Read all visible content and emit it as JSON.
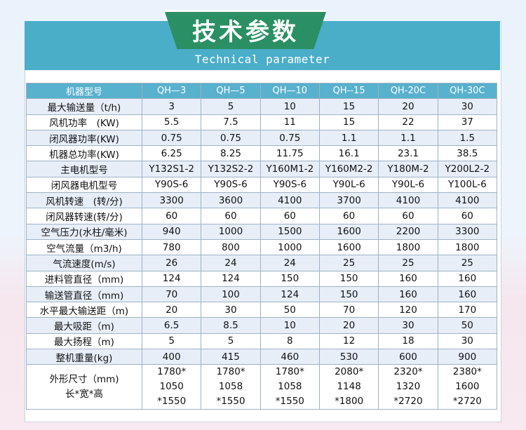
{
  "title": "技术参数",
  "subtitle": "Technical parameter",
  "table": {
    "header_label": "机器型号",
    "models": [
      "QH—3",
      "QH—5",
      "QH—10",
      "QH--15",
      "QH-20C",
      "QH-30C"
    ],
    "rows": [
      {
        "label": "最大输送量（t/h)",
        "values": [
          "3",
          "5",
          "10",
          "15",
          "20",
          "30"
        ]
      },
      {
        "label": "风机功率　(KW)",
        "values": [
          "5.5",
          "7.5",
          "11",
          "15",
          "22",
          "37"
        ]
      },
      {
        "label": "闭风器功率(KW)",
        "values": [
          "0.75",
          "0.75",
          "0.75",
          "1.1",
          "1.1",
          "1.5"
        ]
      },
      {
        "label": "机器总功率(KW)",
        "values": [
          "6.25",
          "8.25",
          "11.75",
          "16.1",
          "23.1",
          "38.5"
        ]
      },
      {
        "label": "主电机型号",
        "values": [
          "Y132S1-2",
          "Y132S2-2",
          "Y160M1-2",
          "Y160M2-2",
          "Y180M-2",
          "Y200L2-2"
        ]
      },
      {
        "label": "闭风器电机型号",
        "values": [
          "Y90S-6",
          "Y90S-6",
          "Y90S-6",
          "Y90L-6",
          "Y90L-6",
          "Y100L-6"
        ]
      },
      {
        "label": "风机转速　(转/分)",
        "values": [
          "3300",
          "3600",
          "4100",
          "3700",
          "4100",
          "4100"
        ]
      },
      {
        "label": "闭风器转速(转/分)",
        "values": [
          "60",
          "60",
          "60",
          "60",
          "60",
          "60"
        ]
      },
      {
        "label": "空气压力(水柱/毫米)",
        "values": [
          "940",
          "1000",
          "1500",
          "1600",
          "2200",
          "3300"
        ]
      },
      {
        "label": "空气流量（m3/h)",
        "values": [
          "780",
          "800",
          "1000",
          "1600",
          "1800",
          "1800"
        ]
      },
      {
        "label": "气流速度(m/s)",
        "values": [
          "26",
          "24",
          "24",
          "25",
          "25",
          "25"
        ]
      },
      {
        "label": "进料管直径（mm)",
        "values": [
          "124",
          "124",
          "150",
          "150",
          "160",
          "160"
        ]
      },
      {
        "label": "输送管直径（mm)",
        "values": [
          "70",
          "100",
          "124",
          "150",
          "160",
          "160"
        ]
      },
      {
        "label": "水平最大输送距（m)",
        "values": [
          "20",
          "30",
          "50",
          "70",
          "120",
          "170"
        ]
      },
      {
        "label": "最大吸距（m)",
        "values": [
          "6.5",
          "8.5",
          "10",
          "20",
          "30",
          "50"
        ]
      },
      {
        "label": "最大扬程（m)",
        "values": [
          "5",
          "5",
          "8",
          "12",
          "18",
          "30"
        ]
      },
      {
        "label": "整机重量(kg)",
        "values": [
          "400",
          "415",
          "460",
          "530",
          "600",
          "900"
        ]
      }
    ],
    "size_row": {
      "label_line1": "外形尺寸（mm)",
      "label_line2": "长*宽*高",
      "values": [
        [
          "1780*",
          "1050",
          "*1550"
        ],
        [
          "1780*",
          "1058",
          "*1550"
        ],
        [
          "1780*",
          "1058",
          "*1550"
        ],
        [
          "2080*",
          "1148",
          "*1800"
        ],
        [
          "2320*",
          "1320",
          "*2720"
        ],
        [
          "2380*",
          "1600",
          "*2720"
        ]
      ]
    }
  },
  "colors": {
    "header_band": "#4aaec9",
    "title_tab": "#2a8f63",
    "table_header": "#58b1cd",
    "row_alt": "#e7eef8"
  }
}
